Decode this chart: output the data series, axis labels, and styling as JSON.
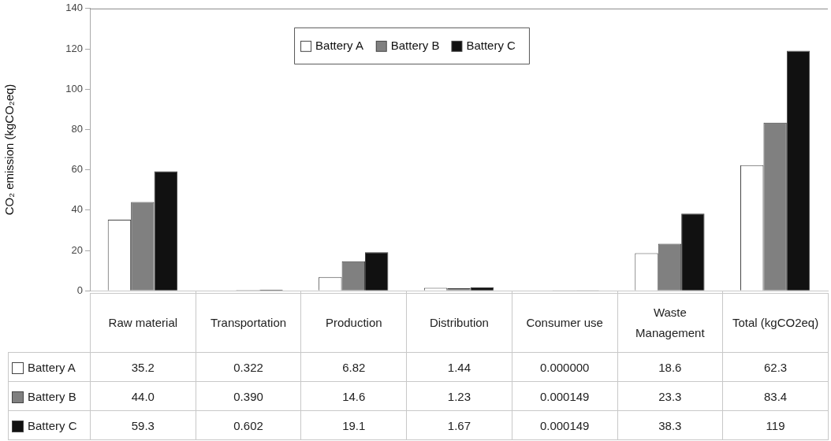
{
  "chart_data": {
    "type": "bar",
    "ylabel": "CO₂ emission (kgCO₂eq)",
    "categories": [
      "Raw material",
      "Transportation",
      "Production",
      "Distribution",
      "Consumer use",
      "Waste Management",
      "Total (kgCO2eq)"
    ],
    "series": [
      {
        "name": "Battery A",
        "color": "#ffffff",
        "values": [
          35.2,
          0.322,
          6.82,
          1.44,
          0,
          18.6,
          62.3
        ],
        "value_labels": [
          "35.2",
          "0.322",
          "6.82",
          "1.44",
          "0.000000",
          "18.6",
          "62.3"
        ]
      },
      {
        "name": "Battery B",
        "color": "#808080",
        "values": [
          44.0,
          0.39,
          14.6,
          1.23,
          0.000149,
          23.3,
          83.4
        ],
        "value_labels": [
          "44.0",
          "0.390",
          "14.6",
          "1.23",
          "0.000149",
          "23.3",
          "83.4"
        ]
      },
      {
        "name": "Battery C",
        "color": "#111111",
        "values": [
          59.3,
          0.602,
          19.1,
          1.67,
          0.000149,
          38.3,
          119
        ],
        "value_labels": [
          "59.3",
          "0.602",
          "19.1",
          "1.67",
          "0.000149",
          "38.3",
          "119"
        ]
      }
    ],
    "ylim": [
      0,
      140
    ],
    "yticks": [
      0,
      20,
      40,
      60,
      80,
      100,
      120,
      140
    ],
    "grid": false,
    "legend": "top"
  }
}
